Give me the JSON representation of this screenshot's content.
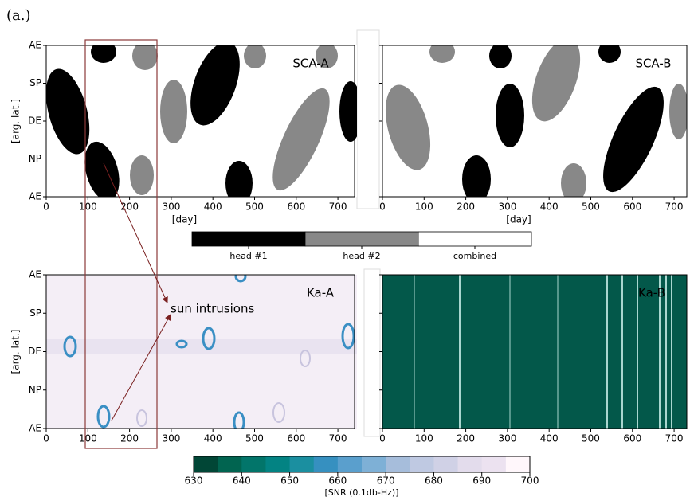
{
  "label": "(a.)",
  "annotation": "sun intrusions",
  "chart_data": [
    {
      "type": "heatmap",
      "title": "SCA-A",
      "xlabel": "[day]",
      "ylabel": "[arg. lat.]",
      "xlim": [
        0,
        740
      ],
      "xticks": [
        0,
        100,
        200,
        300,
        400,
        500,
        600,
        700
      ],
      "ycategories": [
        "AE",
        "SP",
        "DE",
        "NP",
        "AE"
      ]
    },
    {
      "type": "heatmap",
      "title": "SCA-B",
      "xlabel": "[day]",
      "xlim": [
        0,
        740
      ],
      "xticks": [
        0,
        100,
        200,
        300,
        400,
        500,
        600,
        700
      ]
    },
    {
      "type": "heatmap",
      "title": "Ka-A",
      "ylabel": "[arg. lat.]",
      "xlim": [
        0,
        740
      ],
      "xticks": [
        0,
        100,
        200,
        300,
        400,
        500,
        600,
        700
      ],
      "ycategories": [
        "AE",
        "SP",
        "DE",
        "NP",
        "AE"
      ]
    },
    {
      "type": "heatmap",
      "title": "Ka-B",
      "xlim": [
        0,
        740
      ],
      "xticks": [
        0,
        100,
        200,
        300,
        400,
        500,
        600,
        700
      ]
    }
  ],
  "legend": {
    "categories": [
      "head #1",
      "head #2",
      "combined"
    ],
    "colors": [
      "#000000",
      "#888888",
      "#ffffff"
    ]
  },
  "colorbar": {
    "label": "[SNR (0.1db-Hz)]",
    "lim": [
      630,
      700
    ],
    "ticks": [
      630,
      640,
      650,
      660,
      670,
      680,
      690,
      700
    ],
    "colors": [
      "#014636",
      "#016450",
      "#02756a",
      "#038383",
      "#1b8fa0",
      "#3690c0",
      "#5a9fcd",
      "#7eb0d6",
      "#a6bddb",
      "#bfc9e2",
      "#d0d1e6",
      "#e3dcec",
      "#ece2f0",
      "#fff7fb"
    ]
  }
}
